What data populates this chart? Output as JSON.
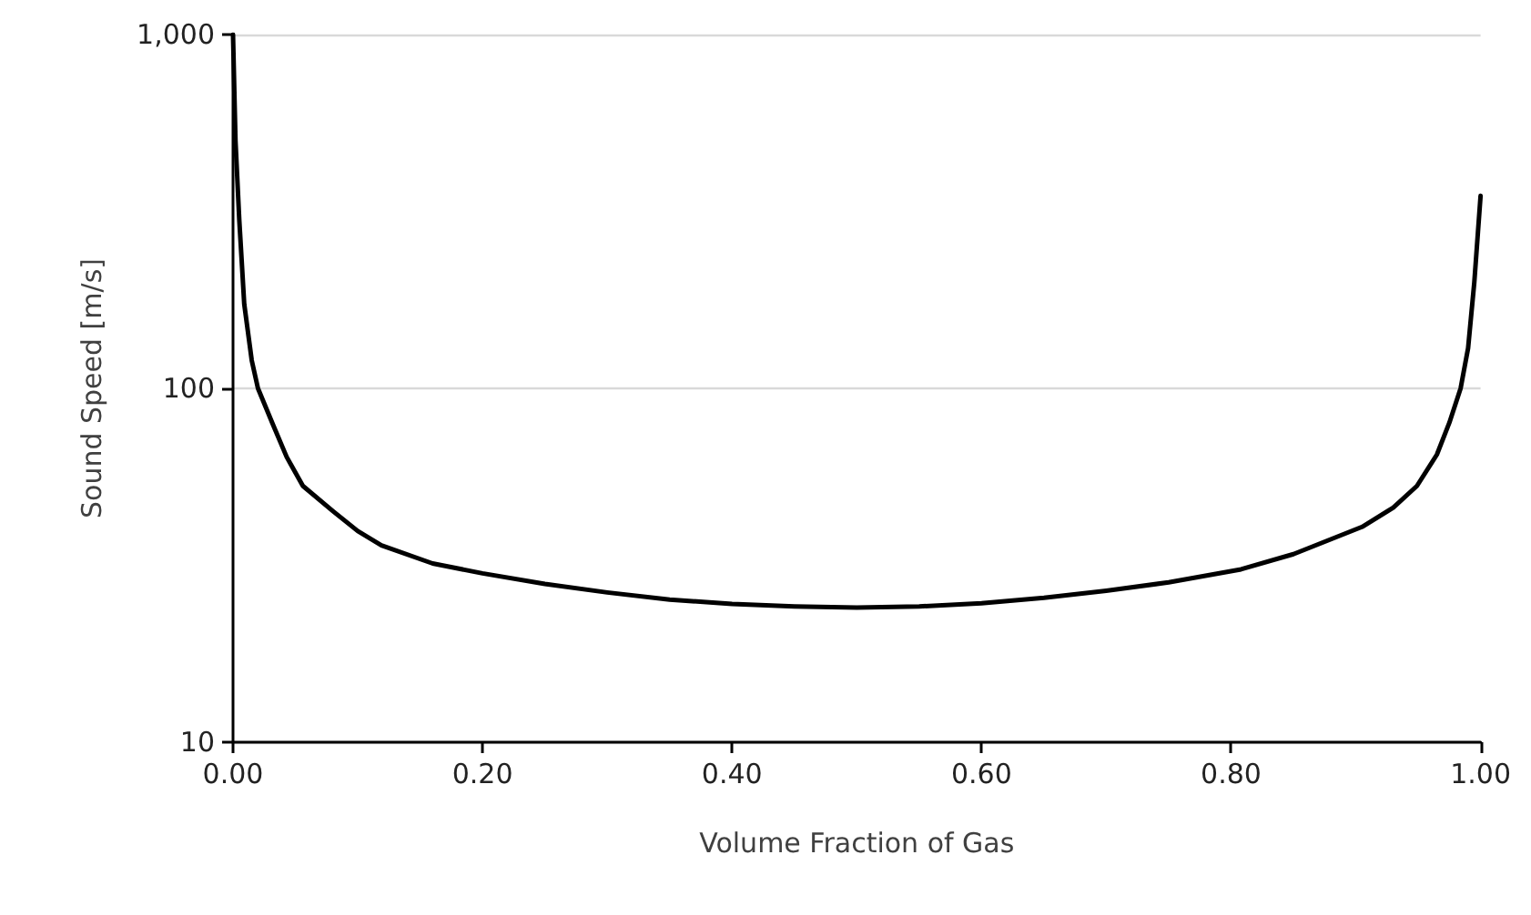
{
  "chart_data": {
    "type": "line",
    "xlabel": "Volume Fraction of Gas",
    "ylabel": "Sound Speed [m/s]",
    "log": "y",
    "grid": "y",
    "marker": "none",
    "line_style": "solid",
    "xlim": [
      0,
      1
    ],
    "ylim": [
      10,
      1000
    ],
    "xticks": [
      {
        "value": 0,
        "label": "0.00"
      },
      {
        "value": 0.2,
        "label": "0.20"
      },
      {
        "value": 0.4,
        "label": "0.40"
      },
      {
        "value": 0.6,
        "label": "0.60"
      },
      {
        "value": 0.8,
        "label": "0.80"
      },
      {
        "value": 1,
        "label": "1.00"
      }
    ],
    "yticks": [
      10,
      100,
      {
        "value": 1000,
        "label": "1,000"
      }
    ],
    "x": [
      0,
      0.002,
      0.005,
      0.009,
      0.015,
      0.02,
      0.032,
      0.043,
      0.056,
      0.08,
      0.1,
      0.119,
      0.16,
      0.2,
      0.25,
      0.3,
      0.35,
      0.4,
      0.45,
      0.5,
      0.55,
      0.6,
      0.65,
      0.7,
      0.75,
      0.808,
      0.85,
      0.905,
      0.93,
      0.949,
      0.965,
      0.975,
      0.984,
      0.99,
      0.995,
      1
    ],
    "series": [
      {
        "color": "#000000",
        "values": [
          1000,
          500,
          300,
          173,
          120,
          100,
          79,
          64,
          53,
          45,
          39.5,
          36,
          32,
          30,
          28,
          26.5,
          25.3,
          24.6,
          24.2,
          24,
          24.2,
          24.7,
          25.6,
          26.8,
          28.3,
          30.8,
          34,
          40.6,
          46,
          53,
          65,
          80,
          100,
          130,
          200,
          350
        ]
      }
    ]
  }
}
